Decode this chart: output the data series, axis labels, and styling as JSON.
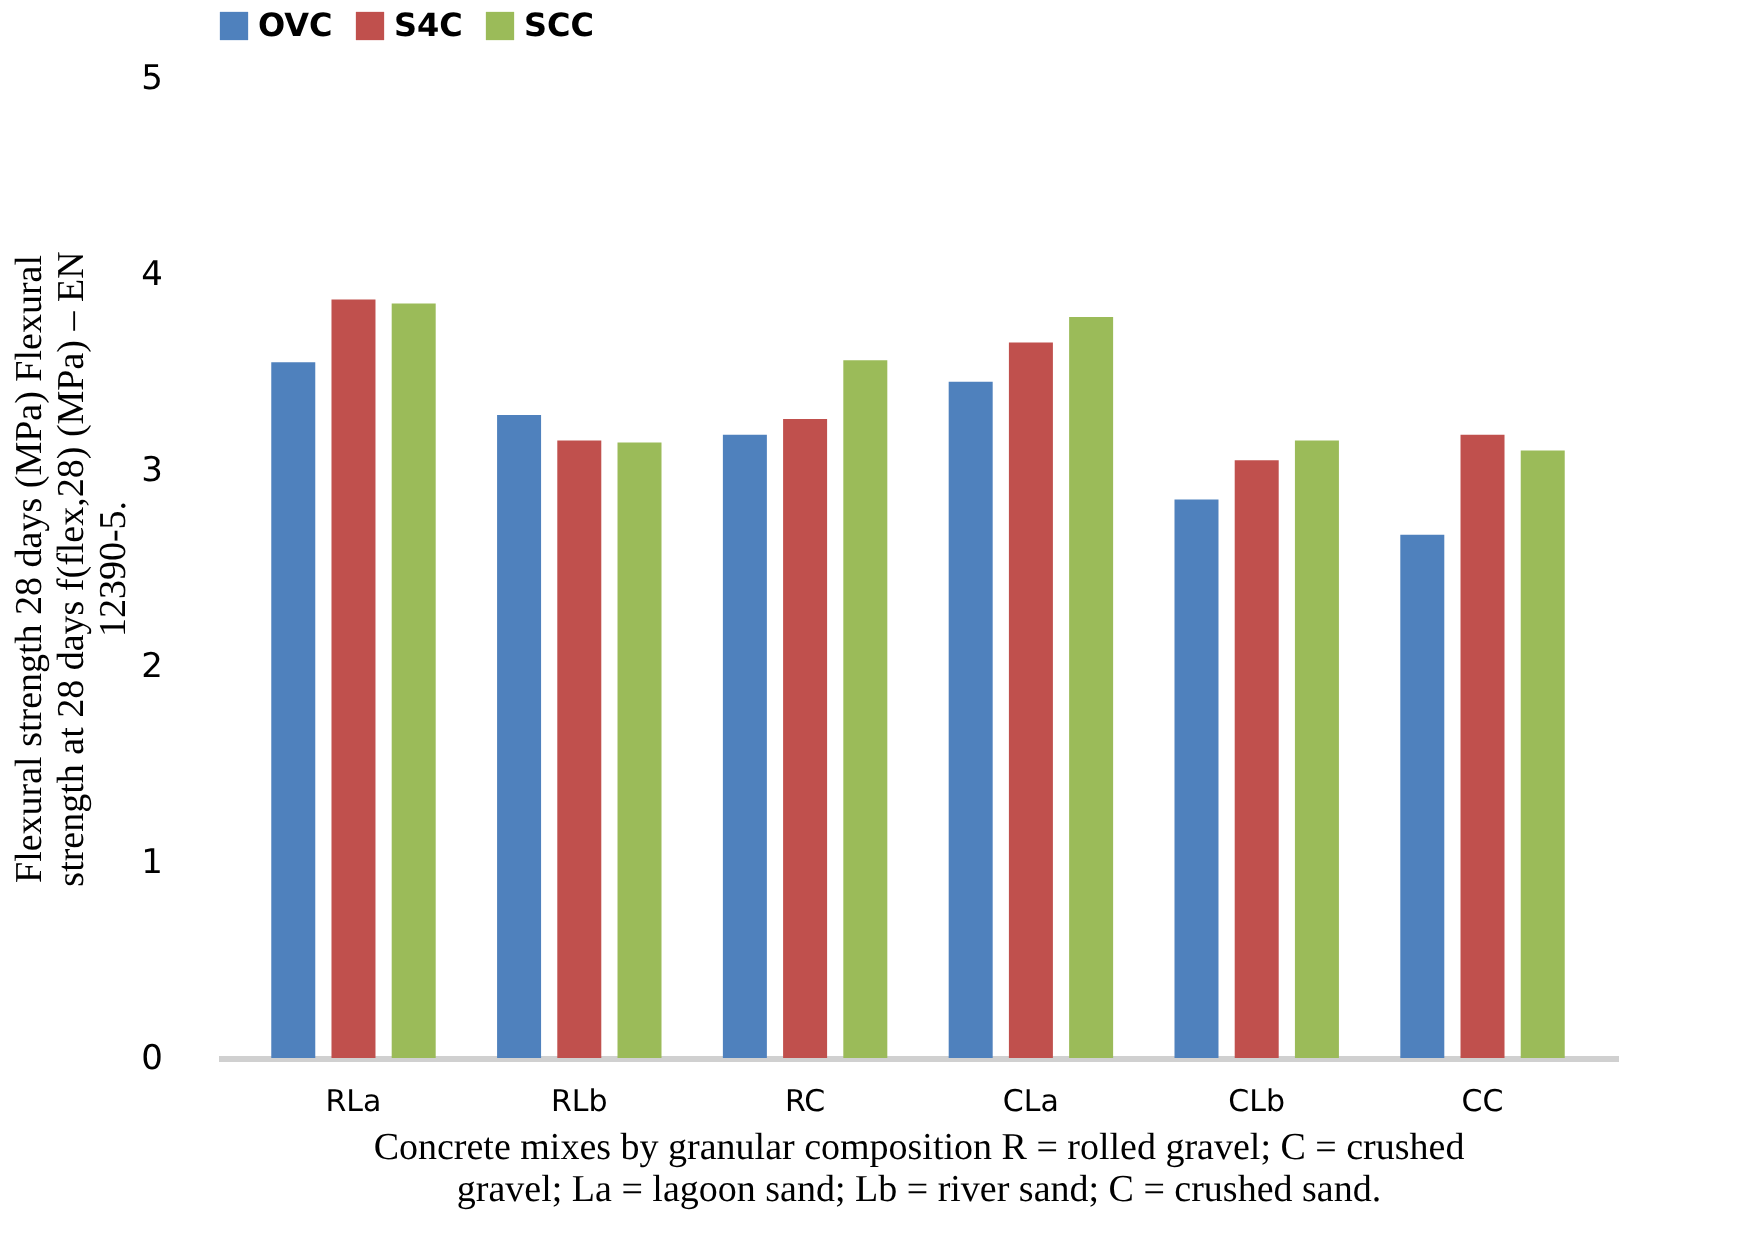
{
  "chart_data": {
    "type": "bar",
    "xlabel": "Concrete mixes by granular composition R = rolled gravel; C = crushed gravel; La = lagoon sand; Lb = river sand; C = crushed sand.",
    "ylabel": "Flexural strength 28 days (MPa) Flexural strength at 28 days f(flex,28) (MPa) – EN 12390-5.",
    "categories": [
      "RLa",
      "RLb",
      "RC",
      "CLa",
      "CLb",
      "CC"
    ],
    "series": [
      {
        "name": "OVC",
        "color": "#4f81bd",
        "values": [
          3.55,
          3.28,
          3.18,
          3.45,
          2.85,
          2.67
        ]
      },
      {
        "name": "S4C",
        "color": "#c0504d",
        "values": [
          3.87,
          3.15,
          3.26,
          3.65,
          3.05,
          3.18
        ]
      },
      {
        "name": "SCC",
        "color": "#9bbb59",
        "values": [
          3.85,
          3.14,
          3.56,
          3.78,
          3.15,
          3.1
        ]
      }
    ],
    "ylim": [
      0,
      5
    ],
    "yticks": [
      0,
      1,
      2,
      3,
      4,
      5
    ],
    "grid": false,
    "legend": "top"
  }
}
